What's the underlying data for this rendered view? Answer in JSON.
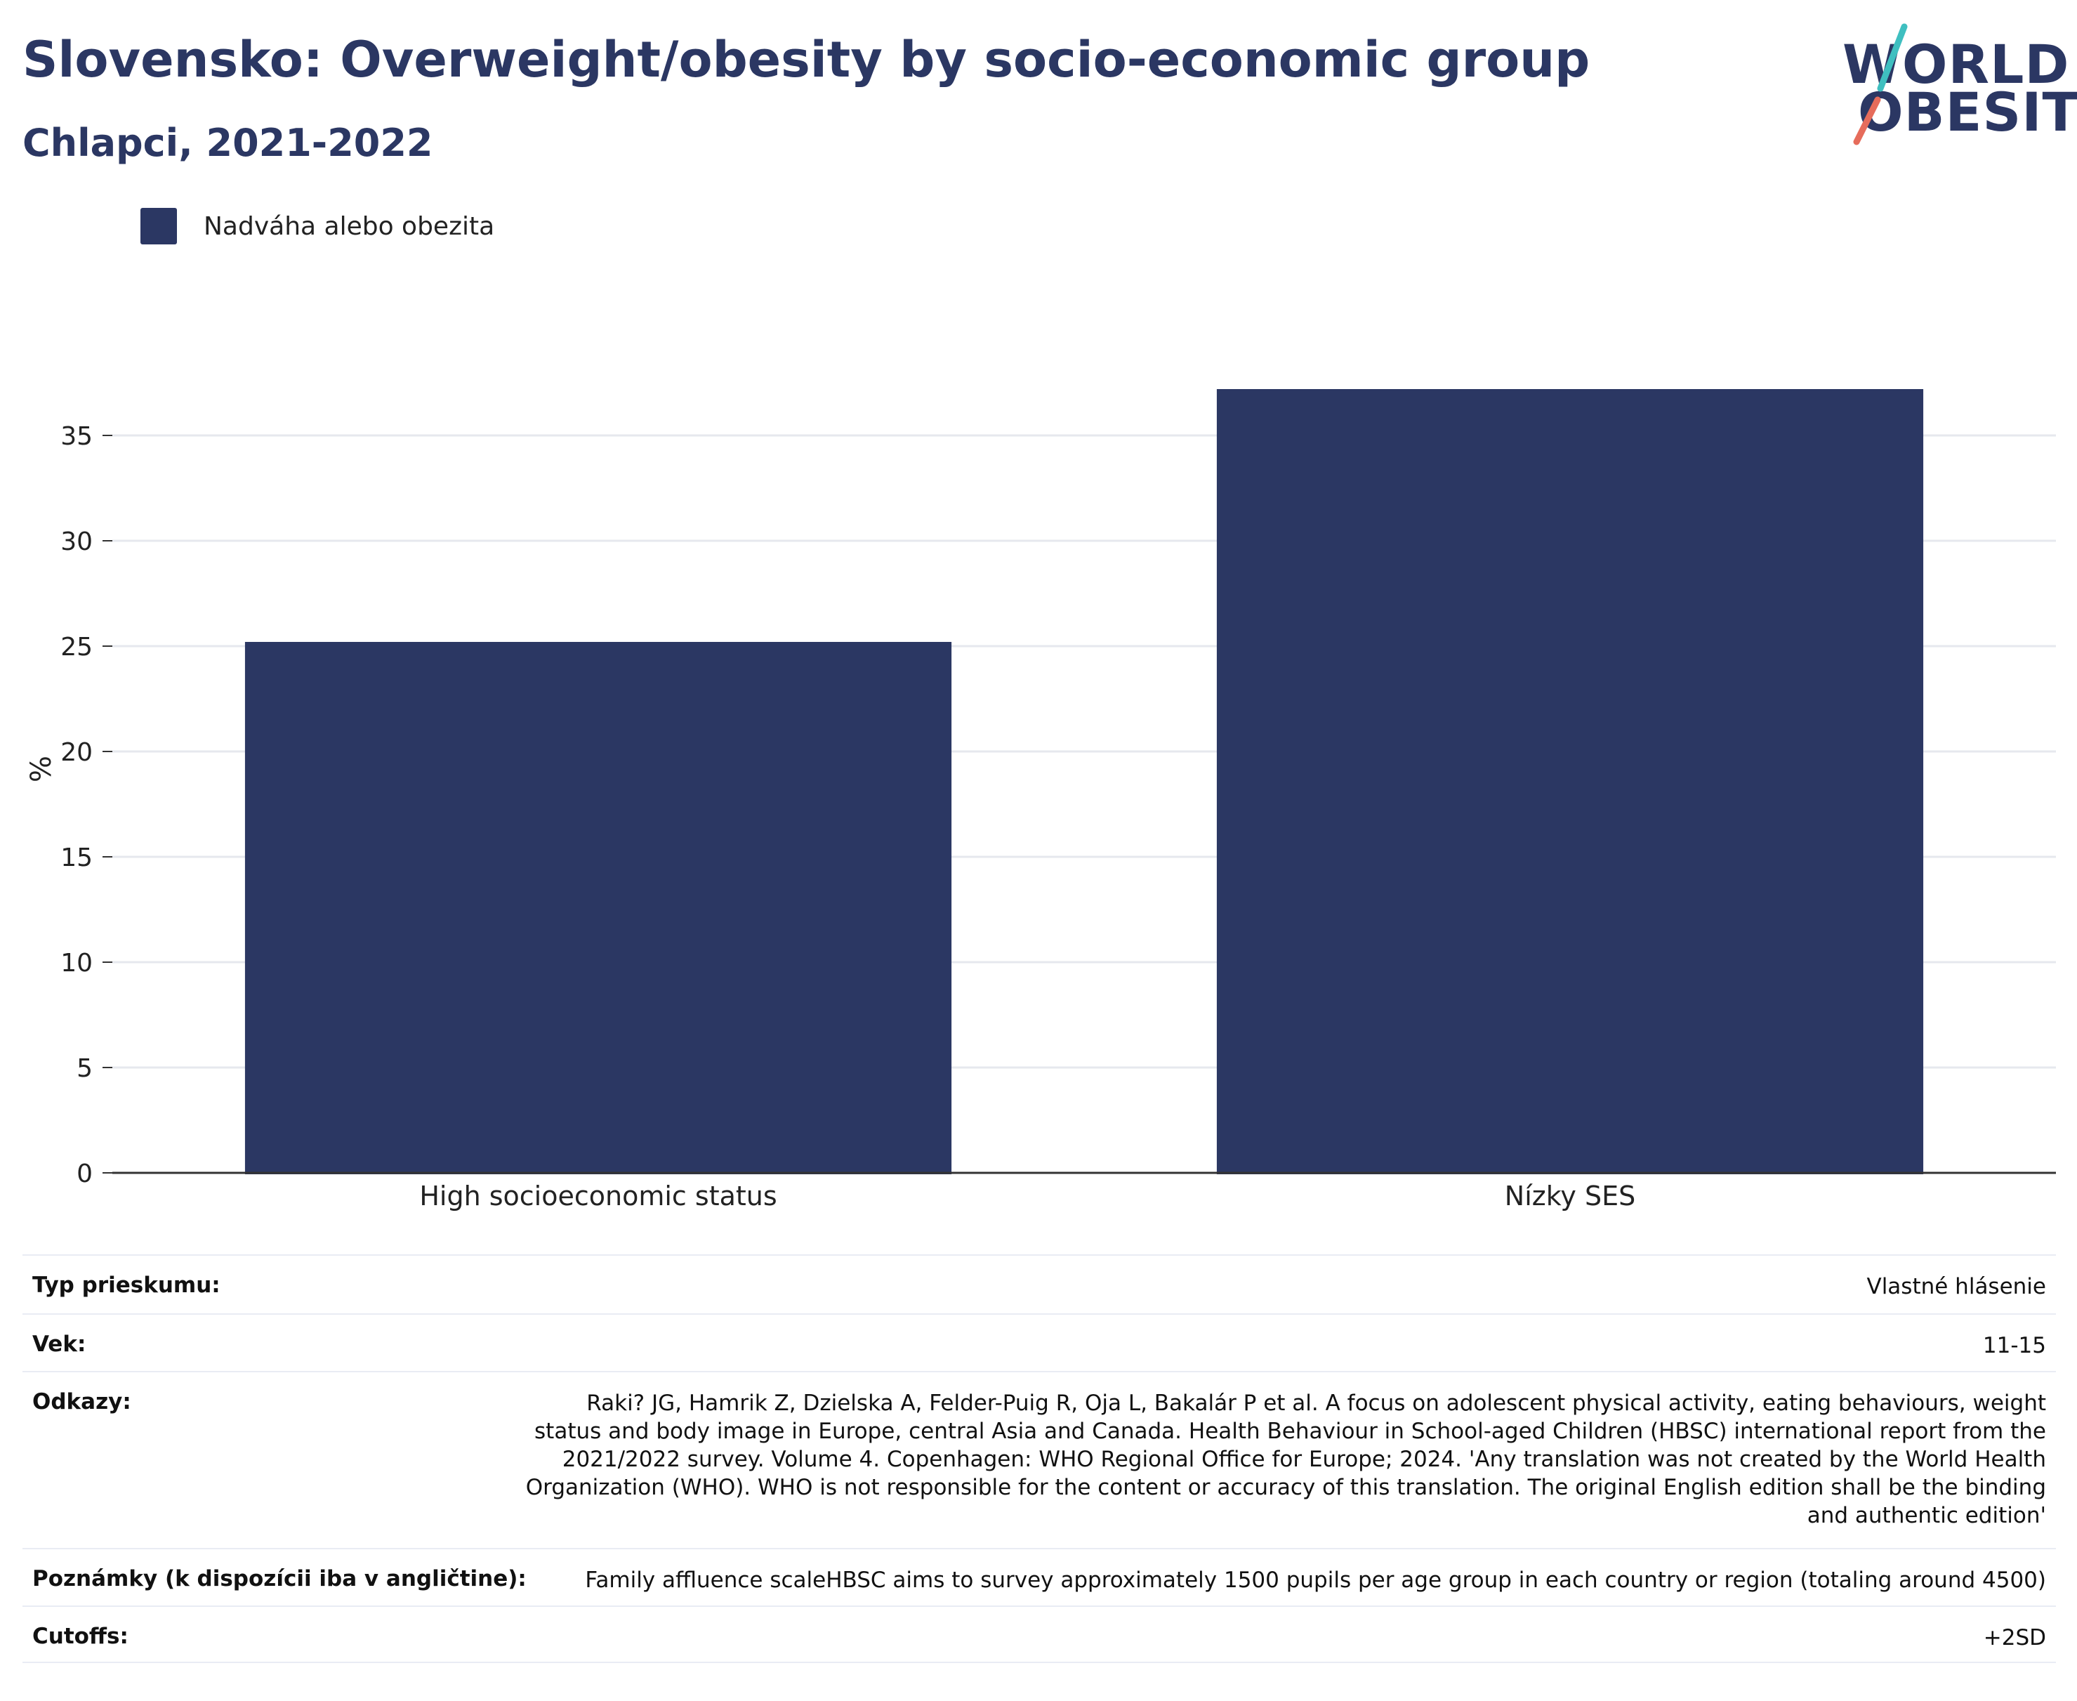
{
  "title": "Slovensko: Overweight/obesity by socio-economic group",
  "subtitle": "Chlapci, 2021-2022",
  "logo": {
    "line1": "WORLD",
    "line2": "OBESITY",
    "colors": [
      "#2b3763",
      "#e66c5b",
      "#3fbfc0"
    ]
  },
  "colors": {
    "bar": "#2b3763",
    "text": "#2b3763",
    "grid": "#e6e8ee",
    "axis": "#333333"
  },
  "chart_data": {
    "type": "bar",
    "categories": [
      "High socioeconomic status",
      "Nízky SES"
    ],
    "series": [
      {
        "name": "Nadváha alebo obezita",
        "values": [
          25.2,
          37.2
        ]
      }
    ],
    "ylabel": "%",
    "xlabel": "",
    "ylim": [
      0,
      39
    ],
    "yticks": [
      0,
      5,
      10,
      15,
      20,
      25,
      30,
      35
    ],
    "grid": true,
    "legend": "top-left"
  },
  "info": [
    {
      "label": "Typ prieskumu:",
      "value": "Vlastné hlásenie"
    },
    {
      "label": "Vek:",
      "value": "11-15"
    },
    {
      "label": "Odkazy:",
      "value": "Raki? JG, Hamrik Z, Dzielska A, Felder-Puig R, Oja L, Bakalár P et al. A focus on adolescent physical activity, eating behaviours, weight status and body image in Europe, central Asia and Canada. Health Behaviour in School-aged Children (HBSC) international report from the 2021/2022 survey. Volume 4. Copenhagen: WHO Regional Office for Europe; 2024. 'Any translation was not created by the World Health Organization (WHO). WHO is not responsible for the content or accuracy of this translation. The original English edition shall be the binding and authentic edition'"
    },
    {
      "label": "Poznámky (k dispozícii iba v angličtine):",
      "value": "Family affluence scaleHBSC aims to survey approximately 1500 pupils per age group in each country or region (totaling around 4500)"
    },
    {
      "label": "Cutoffs:",
      "value": "+2SD"
    }
  ]
}
